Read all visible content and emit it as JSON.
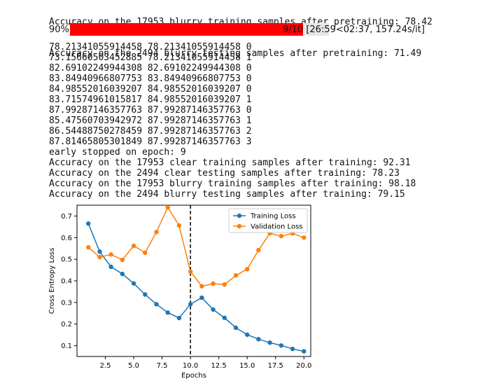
{
  "output": {
    "pre_lines": [
      "Accuracy on the 17953 blurry training samples after pretraining: 78.42",
      "Accuracy on the 2494 blurry testing samples after pretraining: 71.49"
    ],
    "progress": {
      "percent_label": "90%",
      "fraction": 0.9,
      "stats": "9/10 [26:59<02:37, 157.24s/it]"
    },
    "log_lines": [
      "78.21341055914458 78.21341055914458 0",
      "73.15660503452885 78.21341055914458 1",
      "82.69102249944308 82.69102249944308 0",
      "83.84940966807753 83.84940966807753 0",
      "84.98552016039207 84.98552016039207 0",
      "83.71574961015817 84.98552016039207 1",
      "87.99287146357763 87.99287146357763 0",
      "85.47560703942972 87.99287146357763 1",
      "86.54488750278459 87.99287146357763 2",
      "87.81465805301849 87.99287146357763 3",
      "early stopped on epoch: 9",
      "Accuracy on the 17953 clear training samples after training: 92.31",
      "Accuracy on the 2494 clear testing samples after training: 78.23",
      "Accuracy on the 17953 blurry training samples after training: 98.18",
      "Accuracy on the 2494 blurry testing samples after training: 79.15"
    ]
  },
  "chart_data": {
    "type": "line",
    "xlabel": "Epochs",
    "ylabel": "Cross Entropy Loss",
    "xlim": [
      0,
      20.6
    ],
    "ylim": [
      0.05,
      0.75
    ],
    "xticks": [
      2.5,
      5.0,
      7.5,
      10.0,
      12.5,
      15.0,
      17.5,
      20.0
    ],
    "xtick_labels": [
      "2.5",
      "5.0",
      "7.5",
      "10.0",
      "12.5",
      "15.0",
      "17.5",
      "20.0"
    ],
    "yticks": [
      0.1,
      0.2,
      0.3,
      0.4,
      0.5,
      0.6,
      0.7
    ],
    "ytick_labels": [
      "0.1",
      "0.2",
      "0.3",
      "0.4",
      "0.5",
      "0.6",
      "0.7"
    ],
    "vline_x": 10,
    "legend_position": "top-right",
    "grid": false,
    "x": [
      1,
      2,
      3,
      4,
      5,
      6,
      7,
      8,
      9,
      10,
      11,
      12,
      13,
      14,
      15,
      16,
      17,
      18,
      19,
      20
    ],
    "series": [
      {
        "name": "Training Loss",
        "color": "#1f77b4",
        "values": [
          0.665,
          0.535,
          0.465,
          0.432,
          0.388,
          0.337,
          0.292,
          0.253,
          0.228,
          0.292,
          0.322,
          0.267,
          0.229,
          0.183,
          0.151,
          0.13,
          0.114,
          0.101,
          0.085,
          0.074
        ]
      },
      {
        "name": "Validation Loss",
        "color": "#ff7f0e",
        "values": [
          0.555,
          0.51,
          0.522,
          0.497,
          0.562,
          0.53,
          0.626,
          0.74,
          0.656,
          0.443,
          0.375,
          0.387,
          0.383,
          0.425,
          0.454,
          0.542,
          0.62,
          0.607,
          0.62,
          0.6
        ]
      }
    ]
  }
}
